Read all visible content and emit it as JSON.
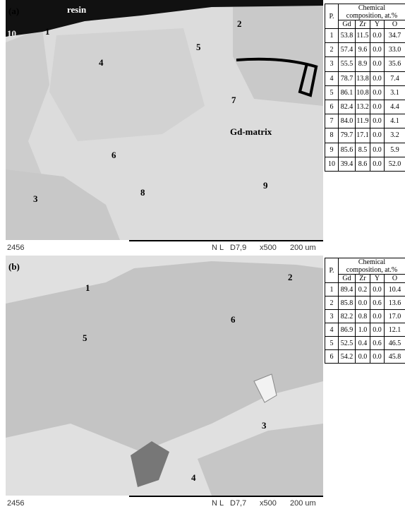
{
  "panels": [
    {
      "label": "(a)",
      "annotations": [
        "resin",
        "10",
        "1",
        "2",
        "5",
        "4",
        "7",
        "Gd-matrix",
        "6",
        "8",
        "9",
        "3"
      ],
      "footer": {
        "id": "2456",
        "mode": "N L",
        "wd": "D7,9",
        "mag": "x500",
        "scale": "200 um"
      },
      "table": {
        "col_label": "P.",
        "header": "Chemical composition, at.%",
        "columns": [
          "Gd",
          "Zr",
          "Y",
          "O"
        ],
        "rows": [
          [
            "1",
            "53.8",
            "11.5",
            "0.0",
            "34.7"
          ],
          [
            "2",
            "57.4",
            "9.6",
            "0.0",
            "33.0"
          ],
          [
            "3",
            "55.5",
            "8.9",
            "0.0",
            "35.6"
          ],
          [
            "4",
            "78.7",
            "13.8",
            "0.0",
            "7.4"
          ],
          [
            "5",
            "86.1",
            "10.8",
            "0.0",
            "3.1"
          ],
          [
            "6",
            "82.4",
            "13.2",
            "0.0",
            "4.4"
          ],
          [
            "7",
            "84.0",
            "11.9",
            "0.0",
            "4.1"
          ],
          [
            "8",
            "79.7",
            "17.1",
            "0.0",
            "3.2"
          ],
          [
            "9",
            "85.6",
            "8.5",
            "0.0",
            "5.9"
          ],
          [
            "10",
            "39.4",
            "8.6",
            "0.0",
            "52.0"
          ]
        ]
      }
    },
    {
      "label": "(b)",
      "annotations": [
        "1",
        "2",
        "6",
        "5",
        "3",
        "4"
      ],
      "footer": {
        "id": "2456",
        "mode": "N L",
        "wd": "D7,7",
        "mag": "x500",
        "scale": "200 um"
      },
      "table": {
        "col_label": "P.",
        "header": "Chemical composition, at.%",
        "columns": [
          "Gd",
          "Zr",
          "Y",
          "O"
        ],
        "rows": [
          [
            "1",
            "89.4",
            "0.2",
            "0.0",
            "10.4"
          ],
          [
            "2",
            "85.8",
            "0.0",
            "0.6",
            "13.6"
          ],
          [
            "3",
            "82.2",
            "0.8",
            "0.0",
            "17.0"
          ],
          [
            "4",
            "86.9",
            "1.0",
            "0.0",
            "12.1"
          ],
          [
            "5",
            "52.5",
            "0.4",
            "0.6",
            "46.5"
          ],
          [
            "6",
            "54.2",
            "0.0",
            "0.0",
            "45.8"
          ]
        ]
      }
    }
  ]
}
